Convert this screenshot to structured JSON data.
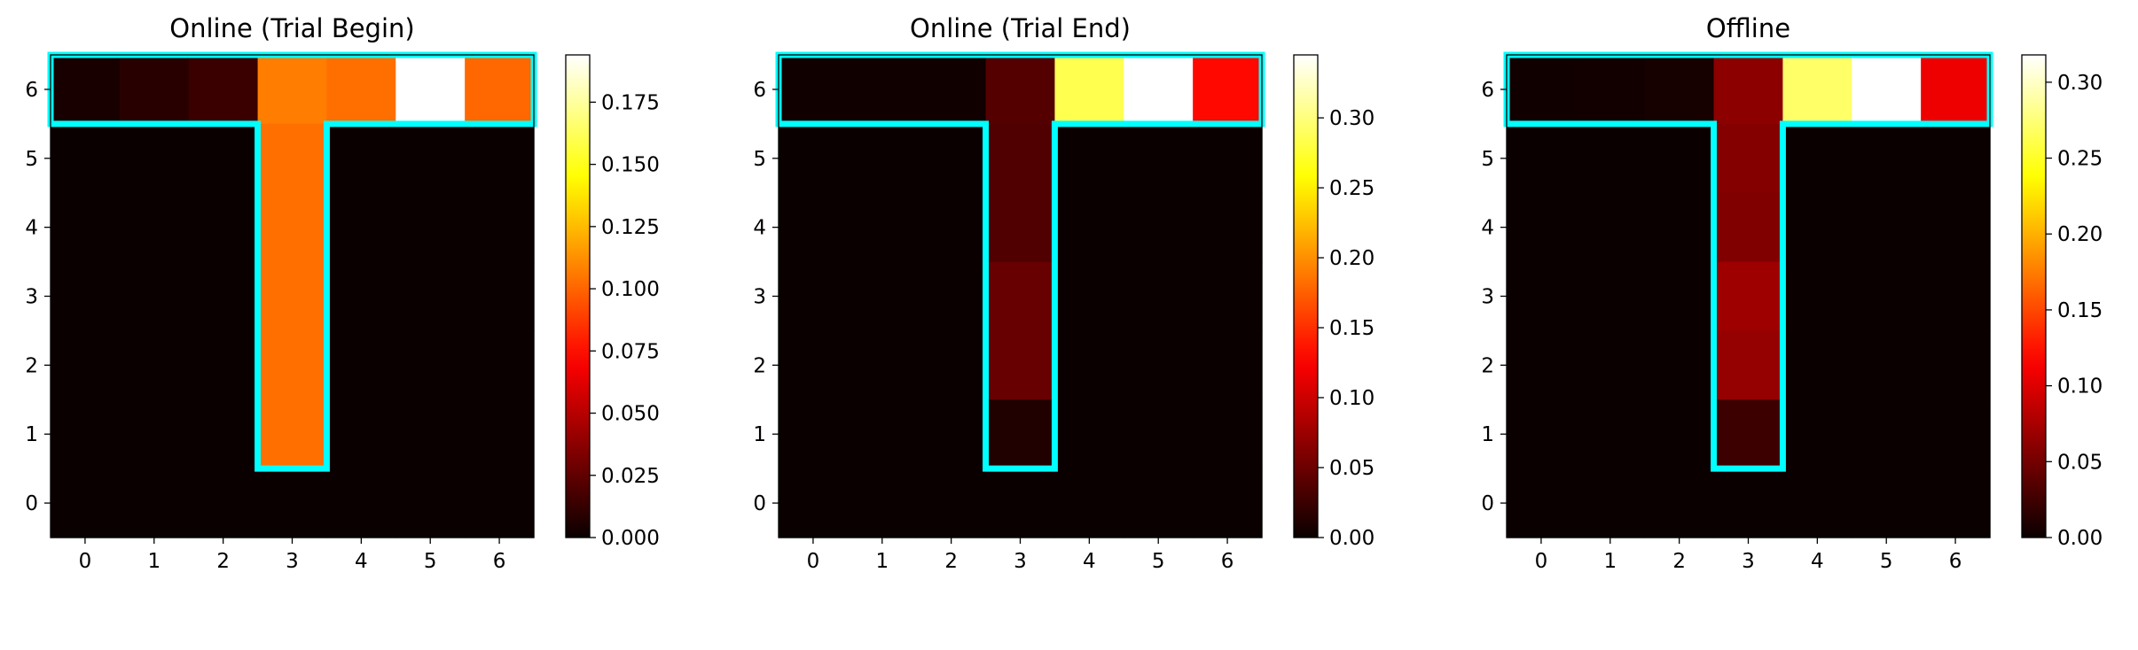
{
  "chart_data": [
    {
      "type": "heatmap",
      "title": "Online (Trial Begin)",
      "x_ticks": [
        "0",
        "1",
        "2",
        "3",
        "4",
        "5",
        "6"
      ],
      "y_ticks": [
        "0",
        "1",
        "2",
        "3",
        "4",
        "5",
        "6"
      ],
      "colormap": "hot",
      "vmin": 0.0,
      "vmax": 0.194,
      "colorbar_ticks": [
        "0.000",
        "0.025",
        "0.050",
        "0.075",
        "0.100",
        "0.125",
        "0.150",
        "0.175"
      ],
      "colorbar_tick_values": [
        0.0,
        0.025,
        0.05,
        0.075,
        0.1,
        0.125,
        0.15,
        0.175
      ],
      "grid_rows_top_to_bottom": [
        [
          0.004,
          0.009,
          0.014,
          0.107,
          0.103,
          0.194,
          0.101
        ],
        [
          0.0,
          0.0,
          0.0,
          0.103,
          0.0,
          0.0,
          0.0
        ],
        [
          0.0,
          0.0,
          0.0,
          0.103,
          0.0,
          0.0,
          0.0
        ],
        [
          0.0,
          0.0,
          0.0,
          0.103,
          0.0,
          0.0,
          0.0
        ],
        [
          0.0,
          0.0,
          0.0,
          0.103,
          0.0,
          0.0,
          0.0
        ],
        [
          0.0,
          0.0,
          0.0,
          0.103,
          0.0,
          0.0,
          0.0
        ],
        [
          0.0,
          0.0,
          0.0,
          0.0,
          0.0,
          0.0,
          0.0
        ]
      ],
      "maze_outline_color": "#00ffff"
    },
    {
      "type": "heatmap",
      "title": "Online (Trial End)",
      "x_ticks": [
        "0",
        "1",
        "2",
        "3",
        "4",
        "5",
        "6"
      ],
      "y_ticks": [
        "0",
        "1",
        "2",
        "3",
        "4",
        "5",
        "6"
      ],
      "colormap": "hot",
      "vmin": 0.0,
      "vmax": 0.345,
      "colorbar_ticks": [
        "0.00",
        "0.05",
        "0.10",
        "0.15",
        "0.20",
        "0.25",
        "0.30"
      ],
      "colorbar_tick_values": [
        0.0,
        0.05,
        0.1,
        0.15,
        0.2,
        0.25,
        0.3
      ],
      "grid_rows_top_to_bottom": [
        [
          0.003,
          0.003,
          0.003,
          0.038,
          0.285,
          0.345,
          0.13
        ],
        [
          0.0,
          0.0,
          0.0,
          0.036,
          0.0,
          0.0,
          0.0
        ],
        [
          0.0,
          0.0,
          0.0,
          0.036,
          0.0,
          0.0,
          0.0
        ],
        [
          0.0,
          0.0,
          0.0,
          0.048,
          0.0,
          0.0,
          0.0
        ],
        [
          0.0,
          0.0,
          0.0,
          0.048,
          0.0,
          0.0,
          0.0
        ],
        [
          0.0,
          0.0,
          0.0,
          0.012,
          0.0,
          0.0,
          0.0
        ],
        [
          0.0,
          0.0,
          0.0,
          0.0,
          0.0,
          0.0,
          0.0
        ]
      ],
      "maze_outline_color": "#00ffff"
    },
    {
      "type": "heatmap",
      "title": "Offline",
      "x_ticks": [
        "0",
        "1",
        "2",
        "3",
        "4",
        "5",
        "6"
      ],
      "y_ticks": [
        "0",
        "1",
        "2",
        "3",
        "4",
        "5",
        "6"
      ],
      "colormap": "hot",
      "vmin": 0.0,
      "vmax": 0.318,
      "colorbar_ticks": [
        "0.00",
        "0.05",
        "0.10",
        "0.15",
        "0.20",
        "0.25",
        "0.30"
      ],
      "colorbar_tick_values": [
        0.0,
        0.05,
        0.1,
        0.15,
        0.2,
        0.25,
        0.3
      ],
      "grid_rows_top_to_bottom": [
        [
          0.003,
          0.004,
          0.006,
          0.062,
          0.27,
          0.318,
          0.108
        ],
        [
          0.0,
          0.0,
          0.0,
          0.058,
          0.0,
          0.0,
          0.0
        ],
        [
          0.0,
          0.0,
          0.0,
          0.056,
          0.0,
          0.0,
          0.0
        ],
        [
          0.0,
          0.0,
          0.0,
          0.07,
          0.0,
          0.0,
          0.0
        ],
        [
          0.0,
          0.0,
          0.0,
          0.066,
          0.0,
          0.0,
          0.0
        ],
        [
          0.0,
          0.0,
          0.0,
          0.024,
          0.0,
          0.0,
          0.0
        ],
        [
          0.0,
          0.0,
          0.0,
          0.0,
          0.0,
          0.0,
          0.0
        ]
      ],
      "maze_outline_color": "#00ffff"
    }
  ]
}
